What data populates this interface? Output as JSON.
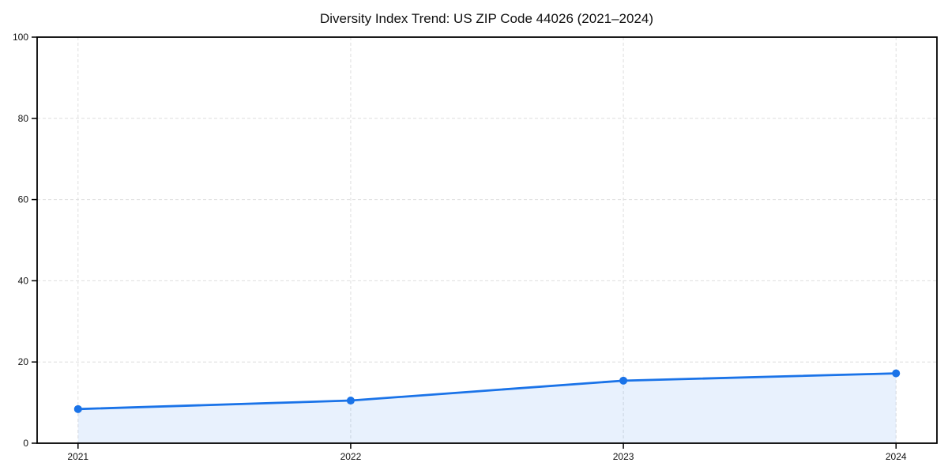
{
  "chart_data": {
    "type": "line",
    "title": "Diversity Index Trend: US ZIP Code 44026 (2021–2024)",
    "x": [
      2021,
      2022,
      2023,
      2024
    ],
    "xticklabels": [
      "2021",
      "2022",
      "2023",
      "2024"
    ],
    "series": [
      {
        "name": "Diversity Index",
        "values": [
          8.4,
          10.5,
          15.4,
          17.2
        ]
      }
    ],
    "yticks": [
      0,
      20,
      40,
      60,
      80,
      100
    ],
    "ylim": [
      0,
      100
    ],
    "xlim": [
      2020.85,
      2024.15
    ],
    "xlabel": "",
    "ylabel": "",
    "legend_position": "none",
    "area_fill": true,
    "grid": {
      "visible": true,
      "style": "dashed",
      "color": "#dedede"
    },
    "colors": {
      "line": "#1a73e8",
      "marker": "#1a73e8",
      "fill": "#1a73e8",
      "fill_opacity": 0.1,
      "axis": "#000000",
      "text": "#111111",
      "background": "#ffffff"
    }
  }
}
